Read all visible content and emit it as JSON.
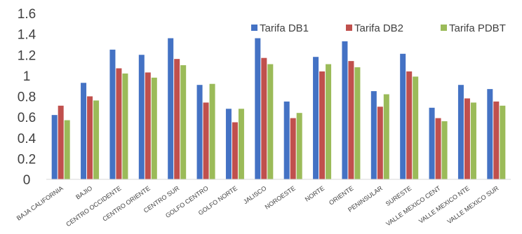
{
  "chart_data": {
    "type": "bar",
    "categories": [
      "BAJA CALIFORNIA",
      "BAJIO",
      "CENTRO OCCIDENTE",
      "CENTRO ORIENTE",
      "CENTRO SUR",
      "GOLFO CENTRO",
      "GOLFO NORTE",
      "JALISCO",
      "NOROESTE",
      "NORTE",
      "ORIENTE",
      "PENINSULAR",
      "SURESTE",
      "VALLE MEXICO CENT",
      "VALLE MEXICO NTE",
      "VALLE MEXICO SUR"
    ],
    "series": [
      {
        "name": "Tarifa DB1",
        "color": "#4472C4",
        "values": [
          0.62,
          0.93,
          1.25,
          1.2,
          1.36,
          0.91,
          0.68,
          1.36,
          0.75,
          1.18,
          1.33,
          0.85,
          1.21,
          0.69,
          0.91,
          0.87
        ]
      },
      {
        "name": "Tarifa DB2",
        "color": "#C0504D",
        "values": [
          0.71,
          0.8,
          1.07,
          1.03,
          1.16,
          0.74,
          0.55,
          1.17,
          0.59,
          1.04,
          1.14,
          0.7,
          1.04,
          0.59,
          0.78,
          0.75
        ]
      },
      {
        "name": "Tarifa PDBT",
        "color": "#9BBB59",
        "values": [
          0.57,
          0.76,
          1.02,
          0.98,
          1.1,
          0.92,
          0.68,
          1.11,
          0.64,
          1.11,
          1.08,
          0.82,
          0.99,
          0.56,
          0.74,
          0.71
        ]
      }
    ],
    "yticks": [
      "0",
      "0.2",
      "0.4",
      "0.6",
      "0.8",
      "1",
      "1.2",
      "1.4",
      "1.6"
    ],
    "ylim": [
      0,
      1.6
    ],
    "title": "",
    "xlabel": "",
    "ylabel": "",
    "legend_position": "top-right",
    "grid": false
  }
}
